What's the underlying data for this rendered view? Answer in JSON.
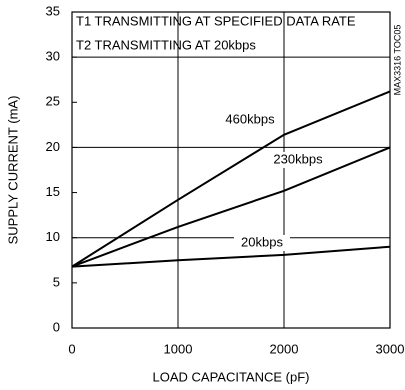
{
  "chart_data": {
    "type": "line",
    "annotations": [
      "T1 TRANSMITTING AT SPECIFIED DATA RATE",
      "T2 TRANSMITTING AT 20kbps",
      "MAX3316 TOC05"
    ],
    "xlabel": "LOAD CAPACITANCE (pF)",
    "ylabel": "SUPPLY CURRENT (mA)",
    "x": [
      0,
      1000,
      2000,
      3000
    ],
    "series": [
      {
        "name": "460kbps",
        "color": "#000000",
        "values": [
          6.8,
          14.2,
          21.4,
          26.2
        ]
      },
      {
        "name": "230kbps",
        "color": "#000000",
        "values": [
          6.8,
          11.2,
          15.2,
          20
        ]
      },
      {
        "name": "20kbps",
        "color": "#000000",
        "values": [
          6.8,
          7.5,
          8.1,
          9.0
        ]
      }
    ],
    "xlim": [
      0,
      3000
    ],
    "xticks": [
      0,
      1000,
      2000,
      3000
    ],
    "ylim": [
      0,
      35
    ],
    "yticks": [
      0,
      5,
      10,
      15,
      20,
      25,
      30,
      35
    ],
    "grid": true
  }
}
